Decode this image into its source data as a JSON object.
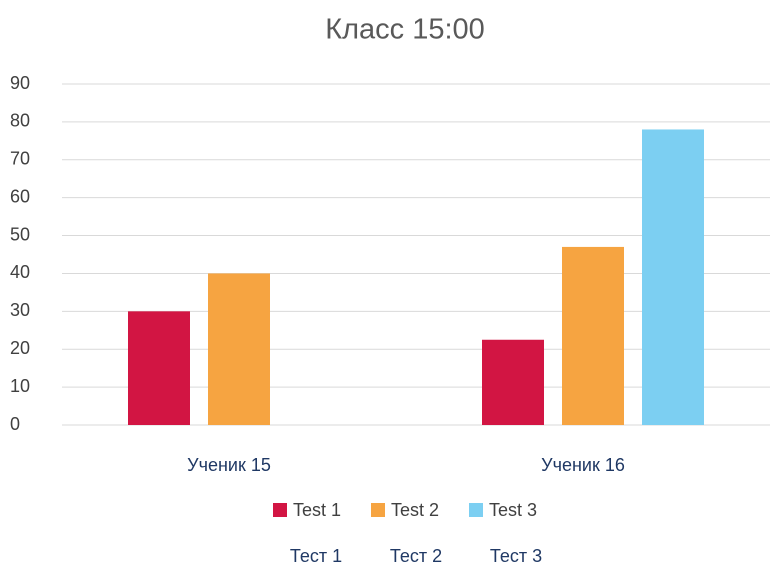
{
  "chart_data": {
    "type": "bar",
    "title": "Класс 15:00",
    "categories": [
      "Ученик 15",
      "Ученик 16"
    ],
    "series": [
      {
        "name": "Test 1",
        "color": "#d21543",
        "values": [
          30,
          22.5
        ]
      },
      {
        "name": "Test 2",
        "color": "#f6a441",
        "values": [
          40,
          47
        ]
      },
      {
        "name": "Test 3",
        "color": "#7ccff2",
        "values": [
          null,
          78
        ]
      }
    ],
    "ylim": [
      0,
      90
    ],
    "yticks": [
      0,
      10,
      20,
      30,
      40,
      50,
      60,
      70,
      80,
      90
    ],
    "grid": true,
    "legend": "bottom",
    "annotations": [
      "Тест 1",
      "Тест 2",
      "Тест 3"
    ]
  }
}
